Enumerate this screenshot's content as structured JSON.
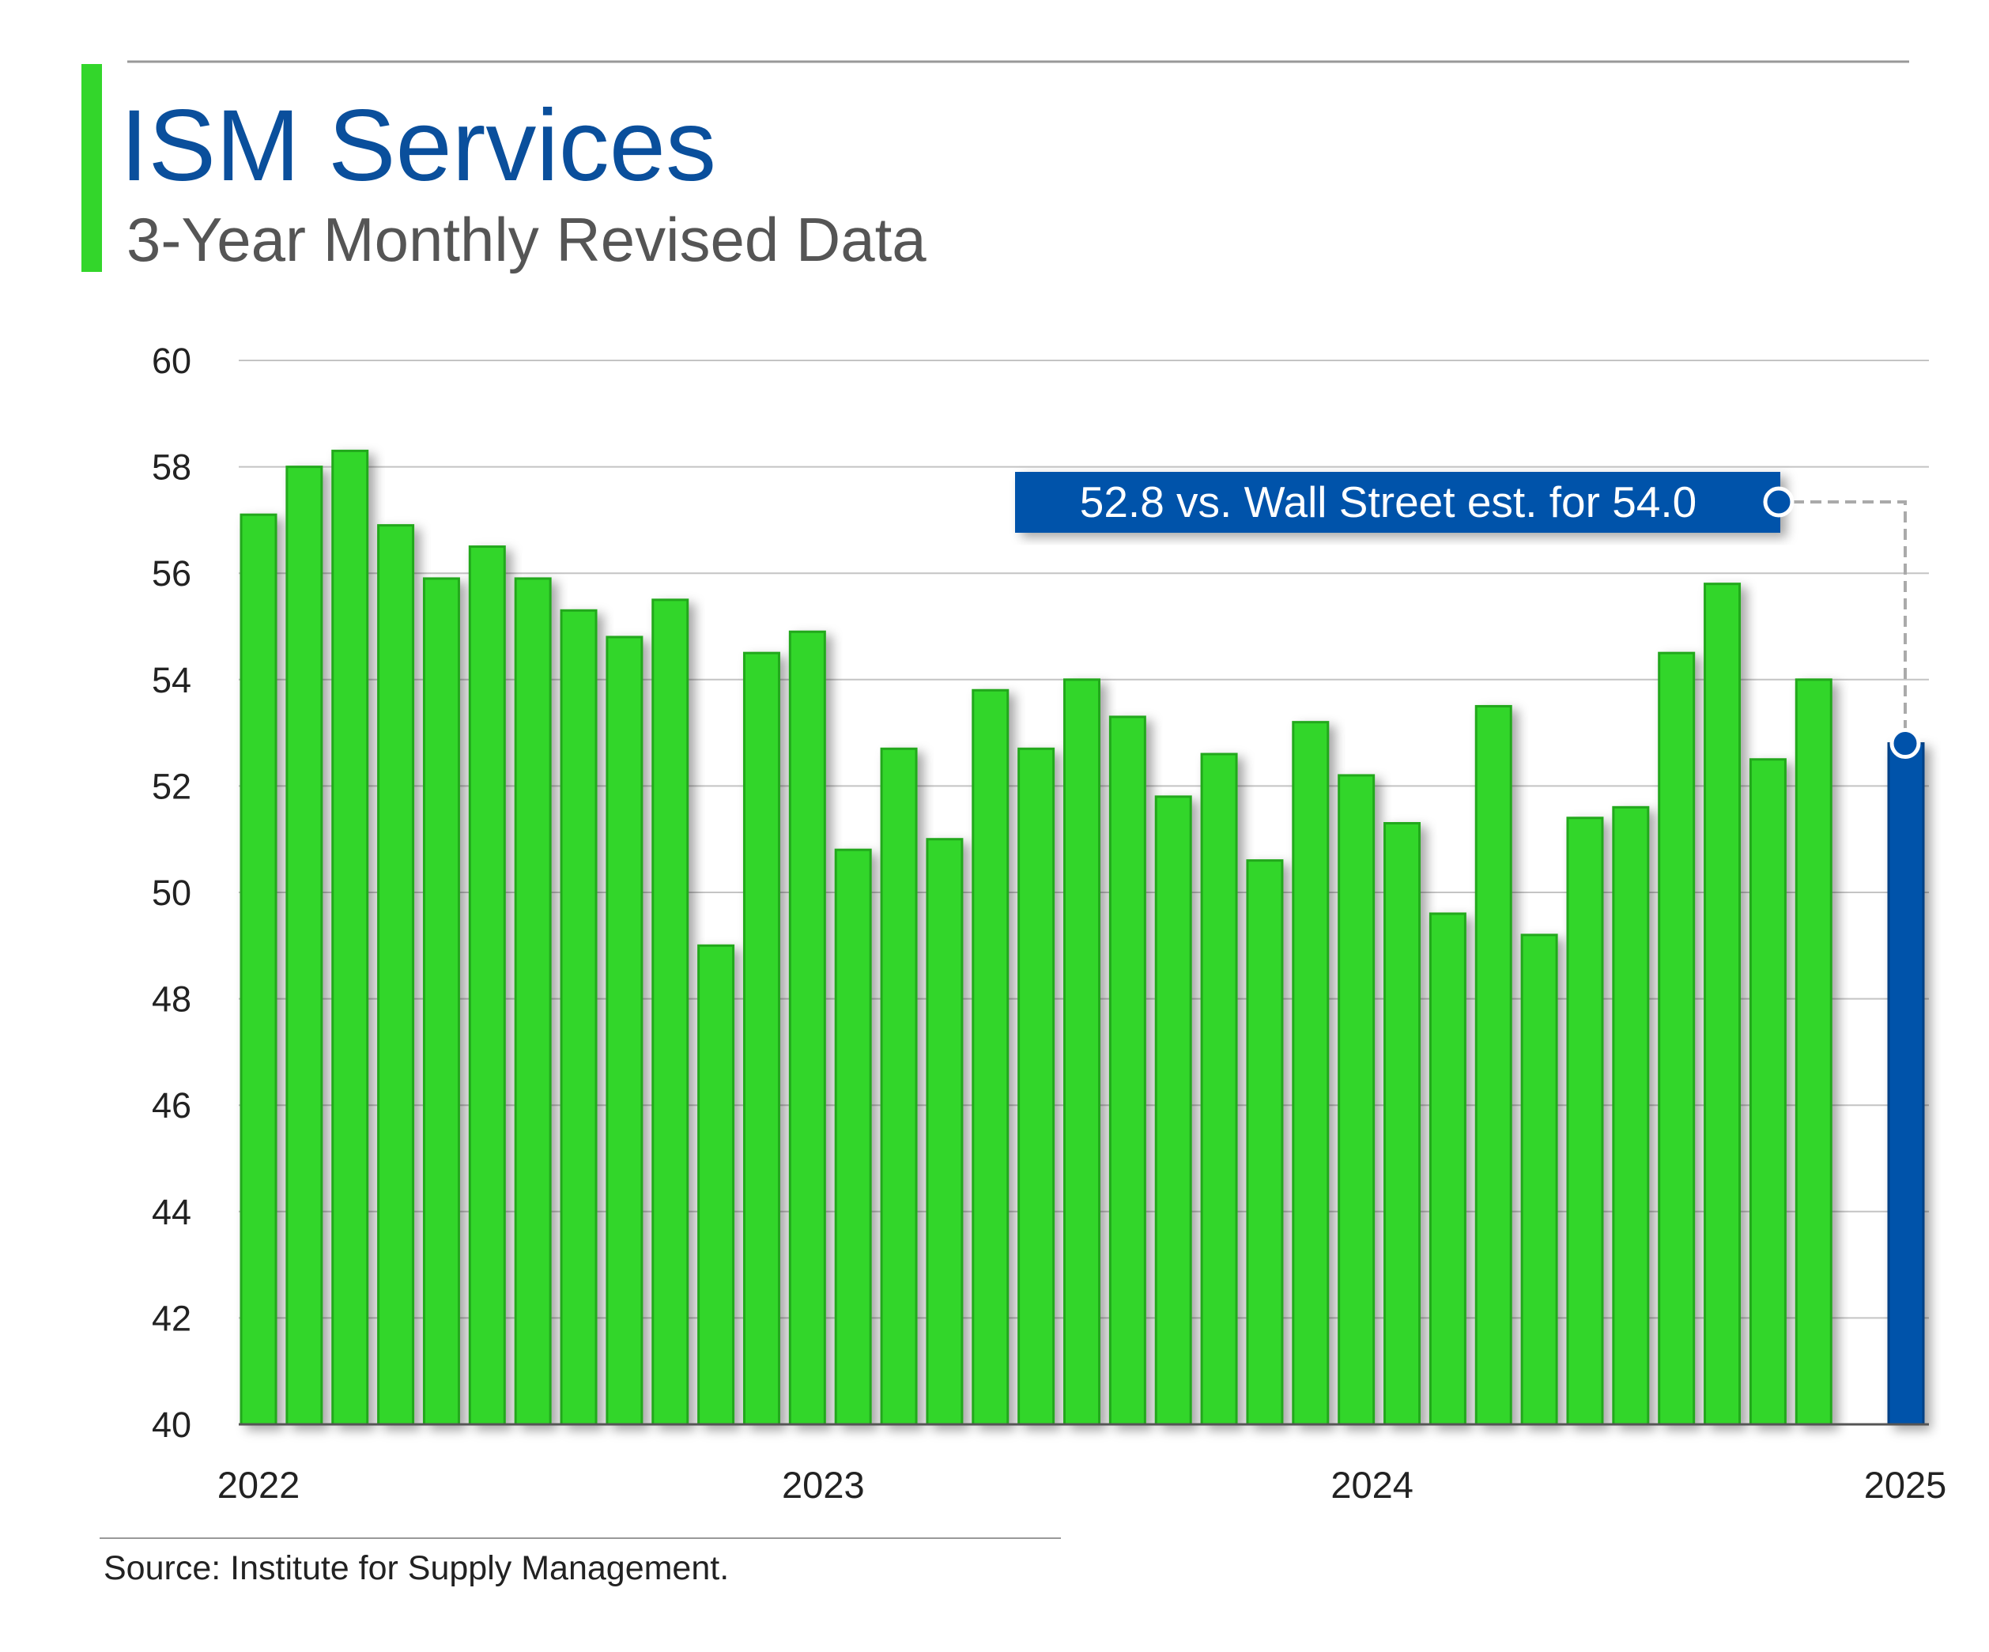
{
  "header": {
    "title": "ISM Services",
    "subtitle": "3-Year Monthly Revised Data"
  },
  "source": "Source: Institute for Supply Management.",
  "colors": {
    "bar": "#33d62b",
    "bar_edge": "#22a81c",
    "highlight": "#0052aa",
    "title": "#0a4f9c",
    "subtitle": "#555555",
    "accent": "#33d62b"
  },
  "chart_data": {
    "type": "bar",
    "title": "ISM Services",
    "subtitle": "3-Year Monthly Revised Data",
    "xlabel": "",
    "ylabel": "",
    "ylim": [
      40,
      60
    ],
    "yticks": [
      "40",
      "42",
      "44",
      "46",
      "48",
      "50",
      "52",
      "54",
      "56",
      "58",
      "60"
    ],
    "xtick_labels": [
      {
        "label": "2022",
        "index": 0
      },
      {
        "label": "2023",
        "index": 12
      },
      {
        "label": "2024",
        "index": 24
      },
      {
        "label": "2025",
        "index": 36
      }
    ],
    "grid": true,
    "values": [
      57.1,
      58.0,
      58.3,
      56.9,
      55.9,
      56.5,
      55.9,
      55.3,
      54.8,
      55.5,
      49.0,
      54.5,
      54.9,
      50.8,
      52.7,
      51.0,
      53.8,
      52.7,
      54.0,
      53.3,
      51.8,
      52.6,
      50.6,
      53.2,
      52.2,
      51.3,
      49.6,
      53.5,
      49.2,
      51.4,
      51.6,
      54.5,
      55.8,
      52.5,
      54.0,
      52.8
    ],
    "highlight_index": 35,
    "annotation": "52.8 vs. Wall Street est. for 54.0"
  }
}
